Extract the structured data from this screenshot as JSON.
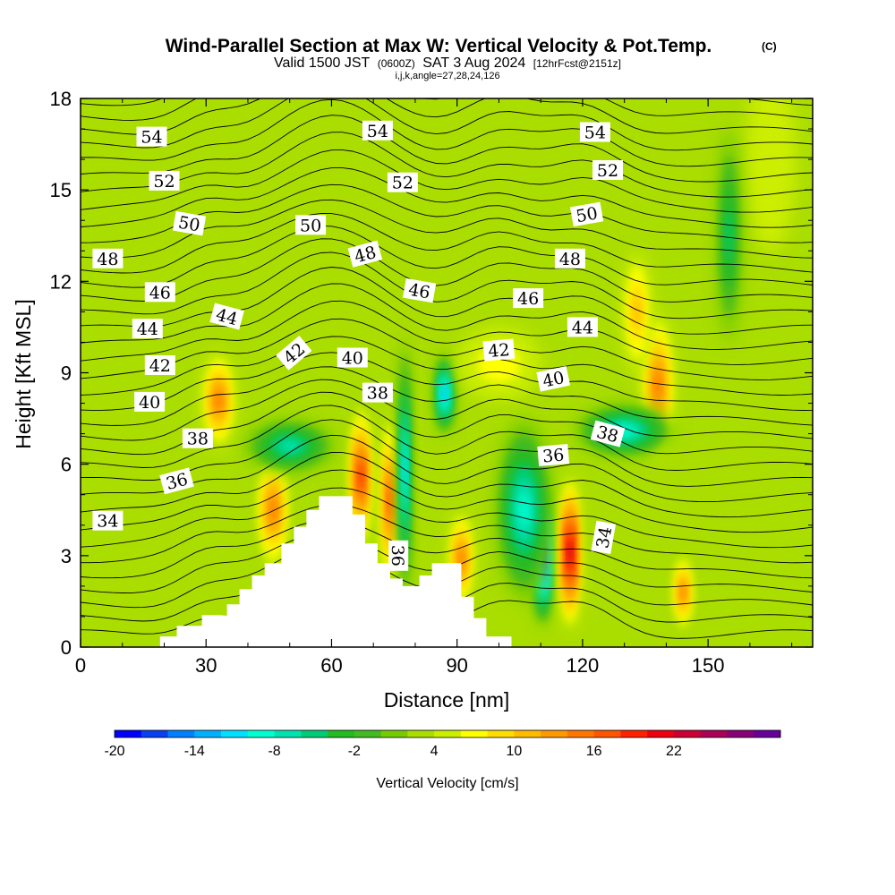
{
  "header": {
    "title": "Wind-Parallel Section at Max W: Vertical Velocity & Pot.Temp.",
    "title_mark": "(C)",
    "valid_prefix": "Valid 1500 JST",
    "valid_utc": "(0600Z)",
    "valid_date": "SAT 3 Aug 2024",
    "forecast": "[12hrFcst@2151z]",
    "indices": "i,j,k,angle=27,28,24,126"
  },
  "chart_data": {
    "type": "heatmap",
    "xlabel": "Distance [nm]",
    "ylabel": "Height [Kft MSL]",
    "xlim": [
      0,
      175
    ],
    "ylim": [
      0,
      18
    ],
    "xticks": [
      0,
      30,
      60,
      90,
      120,
      150
    ],
    "yticks": [
      0,
      3,
      6,
      9,
      12,
      15,
      18
    ],
    "grid": false,
    "colorbar": {
      "label": "Vertical Velocity [cm/s]",
      "min": -20,
      "max": 26,
      "step": 2,
      "tick_labels": [
        "-20",
        "-14",
        "-8",
        "-2",
        "4",
        "10",
        "16",
        "22"
      ],
      "tick_values": [
        -20,
        -14,
        -8,
        -2,
        4,
        10,
        16,
        22
      ],
      "colors": [
        "#0000ff",
        "#0a40f0",
        "#0080ff",
        "#00b0ff",
        "#00e0ff",
        "#00ffd2",
        "#00e3b0",
        "#00cc77",
        "#22bb22",
        "#44bb22",
        "#77cc00",
        "#aadd00",
        "#ccee00",
        "#ffff00",
        "#ffdd00",
        "#ffbb00",
        "#ff9900",
        "#ff7700",
        "#ff5500",
        "#ff2200",
        "#ee0011",
        "#cc0033",
        "#aa0055",
        "#880077",
        "#660099"
      ]
    },
    "terrain": {
      "x": [
        0,
        19,
        19,
        23,
        23,
        29,
        29,
        35,
        35,
        38,
        38,
        41,
        41,
        44,
        44,
        48,
        48,
        51,
        51,
        54,
        54,
        57,
        57,
        65,
        65,
        68,
        68,
        71,
        71,
        74,
        74,
        77,
        77,
        81,
        81,
        84,
        84,
        91,
        91,
        94,
        94,
        97,
        97,
        103,
        103,
        175
      ],
      "y": [
        0,
        0,
        0.35,
        0.35,
        0.7,
        0.7,
        1.05,
        1.05,
        1.4,
        1.4,
        1.9,
        1.9,
        2.35,
        2.35,
        2.75,
        2.75,
        3.4,
        3.4,
        3.95,
        3.95,
        4.5,
        4.5,
        4.95,
        4.95,
        4.35,
        4.35,
        3.4,
        3.4,
        2.75,
        2.75,
        2.25,
        2.25,
        2.0,
        2.0,
        2.35,
        2.35,
        2.75,
        2.75,
        1.65,
        1.65,
        0.95,
        0.95,
        0.35,
        0.35,
        0,
        0
      ]
    },
    "w_cells": [
      {
        "x": 33,
        "y": 8.1,
        "rx": 4,
        "ry": 1.6,
        "w": 14
      },
      {
        "x": 46,
        "y": 4.5,
        "rx": 4.5,
        "ry": 2.2,
        "w": 15
      },
      {
        "x": 67,
        "y": 5.6,
        "rx": 3.2,
        "ry": 2.6,
        "w": 19
      },
      {
        "x": 74,
        "y": 4.8,
        "rx": 2.5,
        "ry": 2.8,
        "w": 16
      },
      {
        "x": 77.5,
        "y": 5.8,
        "rx": 1.6,
        "ry": 4.5,
        "w": -12
      },
      {
        "x": 87,
        "y": 8.3,
        "rx": 2.4,
        "ry": 1.4,
        "w": -14
      },
      {
        "x": 91,
        "y": 2.9,
        "rx": 3,
        "ry": 1.6,
        "w": 14
      },
      {
        "x": 110.5,
        "y": 3.0,
        "rx": 2.6,
        "ry": 2.4,
        "w": -20
      },
      {
        "x": 106,
        "y": 4.5,
        "rx": 7,
        "ry": 3,
        "w": -9
      },
      {
        "x": 117,
        "y": 3.1,
        "rx": 2.6,
        "ry": 2.6,
        "w": 22
      },
      {
        "x": 138,
        "y": 8.6,
        "rx": 4,
        "ry": 2.4,
        "w": 14
      },
      {
        "x": 133,
        "y": 11.0,
        "rx": 3.5,
        "ry": 2,
        "w": 10
      },
      {
        "x": 130,
        "y": 7.1,
        "rx": 12,
        "ry": 0.9,
        "w": -9
      },
      {
        "x": 144,
        "y": 1.8,
        "rx": 2.8,
        "ry": 1.4,
        "w": 15
      },
      {
        "x": 50,
        "y": 6.6,
        "rx": 11,
        "ry": 0.9,
        "w": -8
      },
      {
        "x": 100,
        "y": 9.3,
        "rx": 10,
        "ry": 1.2,
        "w": 6
      },
      {
        "x": 165,
        "y": 16.0,
        "rx": 6,
        "ry": 3,
        "w": 4
      },
      {
        "x": 155,
        "y": 13.5,
        "rx": 3,
        "ry": 3.5,
        "w": -5
      }
    ],
    "theta_levels": [
      34,
      36,
      38,
      40,
      42,
      44,
      46,
      48,
      50,
      52,
      54
    ],
    "contour_labels": [
      {
        "text": "54",
        "x": 17,
        "y": 16.75,
        "angle": 0
      },
      {
        "text": "54",
        "x": 71,
        "y": 16.95,
        "angle": 0
      },
      {
        "text": "54",
        "x": 123,
        "y": 16.9,
        "angle": 0
      },
      {
        "text": "52",
        "x": 20,
        "y": 15.3,
        "angle": 0
      },
      {
        "text": "52",
        "x": 77,
        "y": 15.25,
        "angle": 0
      },
      {
        "text": "52",
        "x": 126,
        "y": 15.65,
        "angle": 0
      },
      {
        "text": "50",
        "x": 26,
        "y": 13.9,
        "angle": 10
      },
      {
        "text": "50",
        "x": 55,
        "y": 13.85,
        "angle": 0
      },
      {
        "text": "50",
        "x": 121,
        "y": 14.2,
        "angle": -10
      },
      {
        "text": "48",
        "x": 6.5,
        "y": 12.75,
        "angle": 0
      },
      {
        "text": "48",
        "x": 68,
        "y": 12.9,
        "angle": -15
      },
      {
        "text": "48",
        "x": 117,
        "y": 12.75,
        "angle": 0
      },
      {
        "text": "46",
        "x": 19,
        "y": 11.65,
        "angle": 0
      },
      {
        "text": "46",
        "x": 81,
        "y": 11.7,
        "angle": 10
      },
      {
        "text": "46",
        "x": 107,
        "y": 11.45,
        "angle": 0
      },
      {
        "text": "44",
        "x": 16,
        "y": 10.45,
        "angle": 0
      },
      {
        "text": "44",
        "x": 35,
        "y": 10.85,
        "angle": 15
      },
      {
        "text": "44",
        "x": 120,
        "y": 10.5,
        "angle": 0
      },
      {
        "text": "42",
        "x": 19,
        "y": 9.25,
        "angle": 0
      },
      {
        "text": "42",
        "x": 51,
        "y": 9.65,
        "angle": -40
      },
      {
        "text": "42",
        "x": 100,
        "y": 9.75,
        "angle": -5
      },
      {
        "text": "40",
        "x": 16.5,
        "y": 8.05,
        "angle": 0
      },
      {
        "text": "40",
        "x": 65,
        "y": 9.5,
        "angle": 0
      },
      {
        "text": "40",
        "x": 113,
        "y": 8.8,
        "angle": -12
      },
      {
        "text": "38",
        "x": 28,
        "y": 6.85,
        "angle": 0
      },
      {
        "text": "38",
        "x": 71,
        "y": 8.35,
        "angle": 0
      },
      {
        "text": "38",
        "x": 126,
        "y": 7.0,
        "angle": 15
      },
      {
        "text": "36",
        "x": 23,
        "y": 5.45,
        "angle": -15
      },
      {
        "text": "36",
        "x": 76,
        "y": 3.0,
        "angle": 90
      },
      {
        "text": "36",
        "x": 113,
        "y": 6.3,
        "angle": -5
      },
      {
        "text": "34",
        "x": 6.5,
        "y": 4.15,
        "angle": 0
      },
      {
        "text": "34",
        "x": 125,
        "y": 3.6,
        "angle": -80
      }
    ]
  }
}
